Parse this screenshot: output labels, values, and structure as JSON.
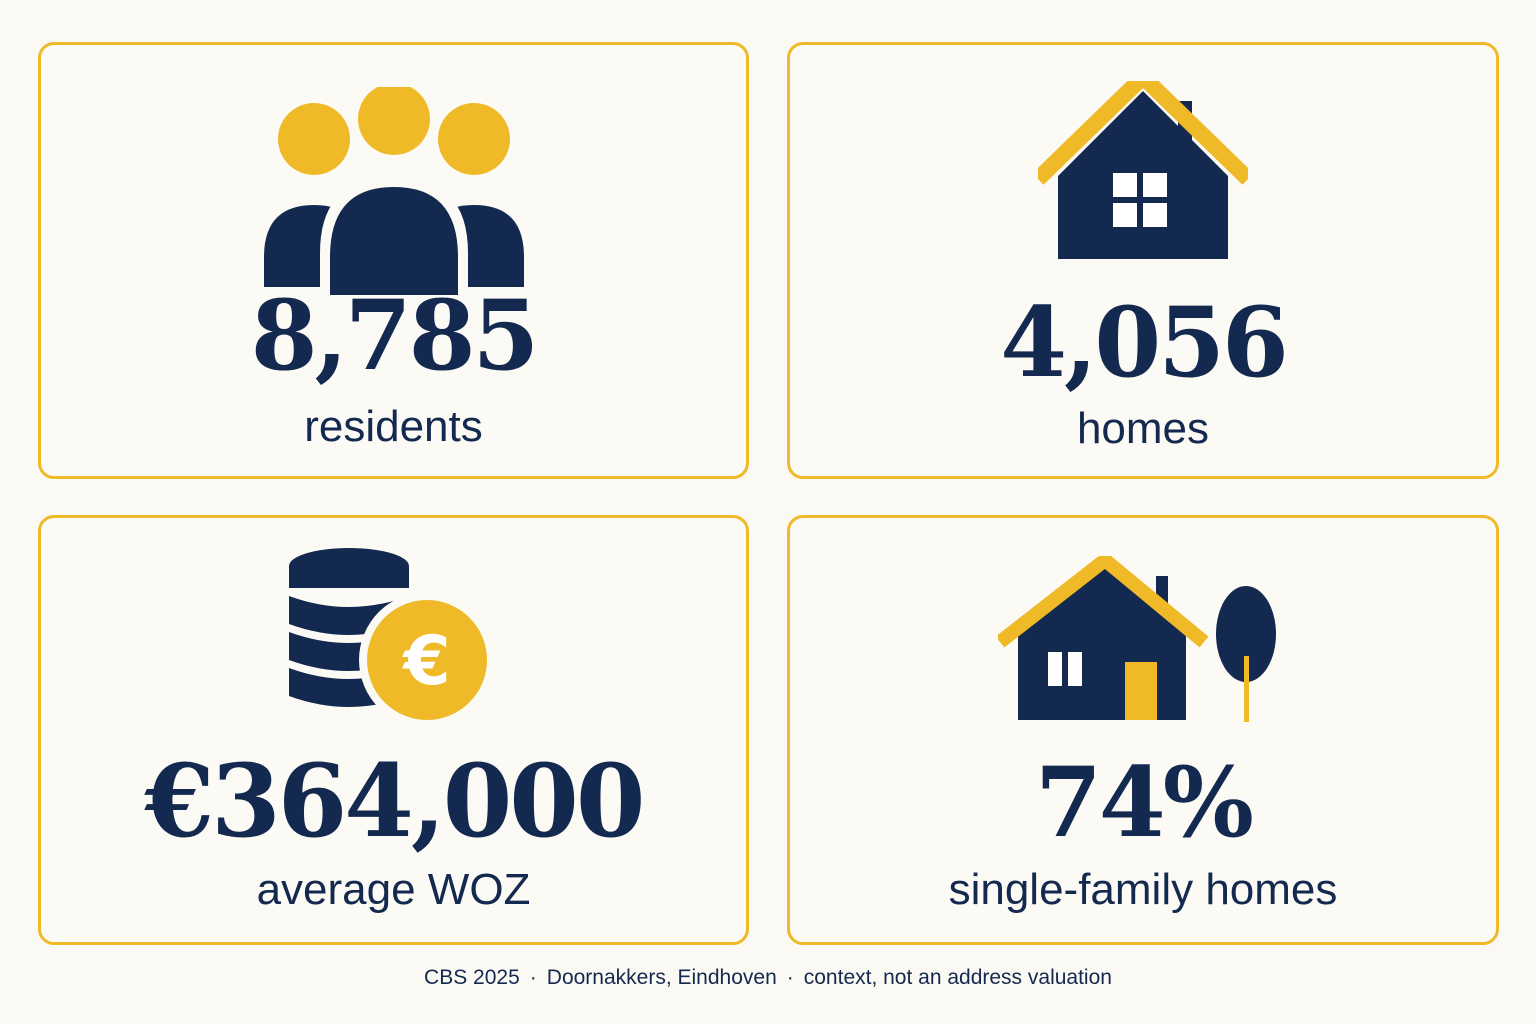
{
  "colors": {
    "navy": "#14294f",
    "gold": "#f0b928",
    "background": "#fbf9f3"
  },
  "cards": [
    {
      "icon": "people-group-icon",
      "value": "8,785",
      "label": "residents"
    },
    {
      "icon": "house-icon",
      "value": "4,056",
      "label": "homes"
    },
    {
      "icon": "coins-euro-icon",
      "value": "€364,000",
      "label": "average WOZ"
    },
    {
      "icon": "house-with-tree-icon",
      "value": "74%",
      "label": "single-family homes"
    }
  ],
  "footer": {
    "source": "CBS 2025",
    "location": "Doornakkers, Eindhoven",
    "note": "context, not an address valuation",
    "separator": "·"
  }
}
